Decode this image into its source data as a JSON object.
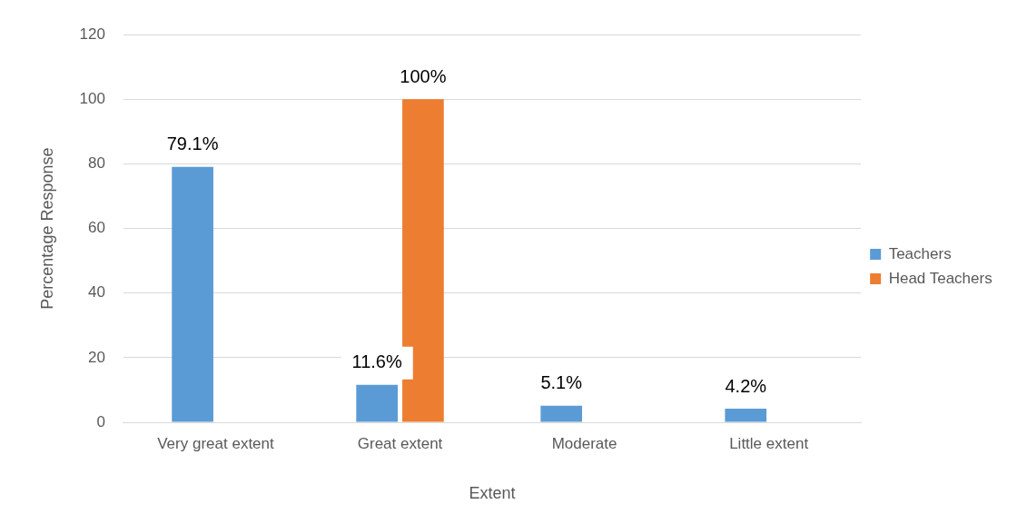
{
  "chart_data": {
    "type": "bar",
    "xlabel": "Extent",
    "ylabel": "Percentage Response",
    "categories": [
      "Very great extent",
      "Great extent",
      "Moderate",
      "Little extent"
    ],
    "series": [
      {
        "name": "Teachers",
        "color": "#5b9bd5",
        "values": [
          79.1,
          11.6,
          5.1,
          4.2
        ],
        "value_labels": [
          "79.1%",
          "11.6%",
          "5.1%",
          "4.2%"
        ]
      },
      {
        "name": "Head Teachers",
        "color": "#ed7d31",
        "values": [
          null,
          100,
          null,
          null
        ],
        "value_labels": [
          null,
          "100%",
          null,
          null
        ]
      }
    ],
    "ylim": [
      0,
      120
    ],
    "yticks": [
      0,
      20,
      40,
      60,
      80,
      100,
      120
    ],
    "grid": "y",
    "legend": "right"
  }
}
